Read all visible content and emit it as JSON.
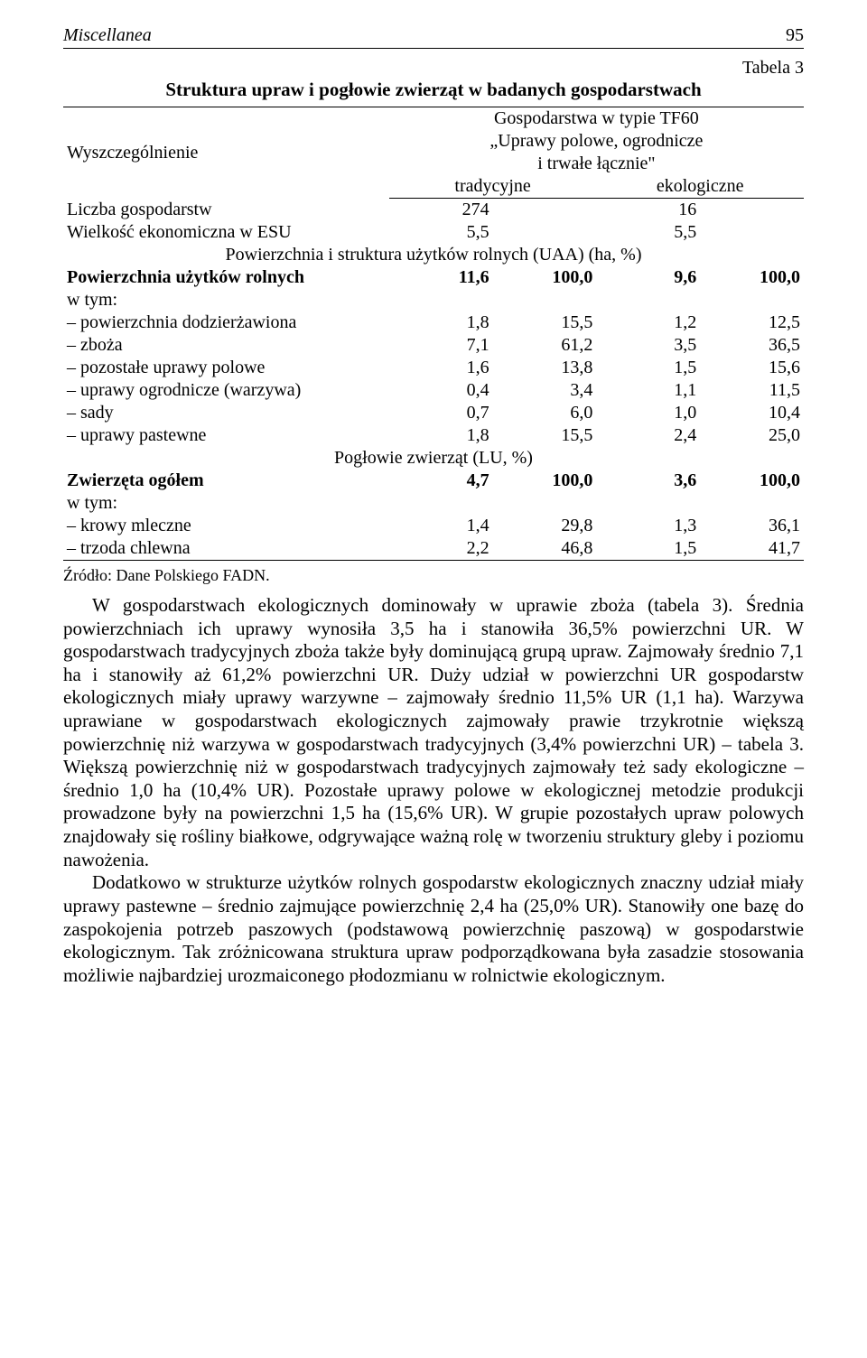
{
  "running_head": {
    "title": "Miscellanea",
    "page": "95"
  },
  "table_label": "Tabela 3",
  "table_title": "Struktura upraw i pogłowie zwierząt w badanych gospodarstwach",
  "header": {
    "col1": "Wyszczególnienie",
    "group_line1": "Gospodarstwa w typie TF60",
    "group_line2": "„Uprawy polowe, ogrodnicze",
    "group_line3": "i trwałe łącznie\"",
    "sub_left": "tradycyjne",
    "sub_right": "ekologiczne"
  },
  "section_uaa": "Powierzchnia i struktura użytków rolnych (UAA) (ha, %)",
  "section_lu": "Pogłowie zwierząt (LU, %)",
  "rows_top": [
    {
      "label": "Liczba gospodarstw",
      "v1": "274",
      "v2": "",
      "v3": "16",
      "v4": ""
    },
    {
      "label": "Wielkość ekonomiczna w ESU",
      "v1": "5,5",
      "v2": "",
      "v3": "5,5",
      "v4": ""
    }
  ],
  "row_uaa_total": {
    "label": "Powierzchnia użytków rolnych",
    "v1": "11,6",
    "v2": "100,0",
    "v3": "9,6",
    "v4": "100,0",
    "bold": true
  },
  "w_tym": "w tym:",
  "rows_uaa": [
    {
      "label": "– powierzchnia dodzierżawiona",
      "v1": "1,8",
      "v2": "15,5",
      "v3": "1,2",
      "v4": "12,5"
    },
    {
      "label": "– zboża",
      "v1": "7,1",
      "v2": "61,2",
      "v3": "3,5",
      "v4": "36,5"
    },
    {
      "label": "– pozostałe uprawy polowe",
      "v1": "1,6",
      "v2": "13,8",
      "v3": "1,5",
      "v4": "15,6"
    },
    {
      "label": "– uprawy ogrodnicze (warzywa)",
      "v1": "0,4",
      "v2": "3,4",
      "v3": "1,1",
      "v4": "11,5"
    },
    {
      "label": "– sady",
      "v1": "0,7",
      "v2": "6,0",
      "v3": "1,0",
      "v4": "10,4"
    },
    {
      "label": "– uprawy pastewne",
      "v1": "1,8",
      "v2": "15,5",
      "v3": "2,4",
      "v4": "25,0"
    }
  ],
  "row_lu_total": {
    "label": "Zwierzęta ogółem",
    "v1": "4,7",
    "v2": "100,0",
    "v3": "3,6",
    "v4": "100,0",
    "bold": true
  },
  "rows_lu": [
    {
      "label": "– krowy mleczne",
      "v1": "1,4",
      "v2": "29,8",
      "v3": "1,3",
      "v4": "36,1"
    },
    {
      "label": "– trzoda chlewna",
      "v1": "2,2",
      "v2": "46,8",
      "v3": "1,5",
      "v4": "41,7"
    }
  ],
  "source": "Źródło: Dane Polskiego FADN.",
  "paragraphs": [
    "W gospodarstwach ekologicznych dominowały w uprawie zboża (tabela 3). Średnia powierzchniach ich uprawy wynosiła 3,5 ha i stanowiła 36,5% powierzchni UR. W gospodarstwach tradycyjnych zboża także były dominującą grupą upraw. Zajmowały średnio 7,1 ha i stanowiły aż 61,2% powierzchni UR. Duży udział w powierzchni UR gospodarstw ekologicznych miały uprawy warzywne – zajmowały średnio 11,5% UR (1,1 ha). Warzywa uprawiane w gospodarstwach ekologicznych zajmowały prawie trzykrotnie większą powierzchnię niż warzywa w gospodarstwach tradycyjnych (3,4% powierzchni UR) – tabela 3. Większą powierzchnię niż w gospodarstwach tradycyjnych zajmowały też sady ekologiczne – średnio 1,0 ha (10,4% UR). Pozostałe uprawy polowe w ekologicznej metodzie produkcji prowadzone były na powierzchni 1,5 ha (15,6% UR). W grupie pozostałych upraw polowych znajdowały się rośliny białkowe, odgrywające ważną rolę w tworzeniu struktury gleby i poziomu nawożenia.",
    "Dodatkowo w strukturze użytków rolnych gospodarstw ekologicznych znaczny udział miały uprawy pastewne – średnio zajmujące powierzchnię 2,4 ha (25,0% UR). Stanowiły one bazę do zaspokojenia potrzeb paszowych (podstawową powierzchnię paszową) w gospodarstwie ekologicznym. Tak zróżnicowana struktura upraw podporządkowana była zasadzie stosowania możliwie najbardziej urozmaiconego płodozmianu w rolnictwie ekologicznym."
  ]
}
